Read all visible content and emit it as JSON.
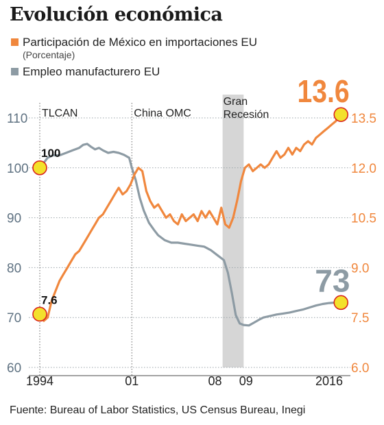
{
  "title": "Evolución económica",
  "legend": [
    {
      "label": "Participación de México en importaciones EU",
      "note": "(Porcentaje)",
      "color": "#f0873d"
    },
    {
      "label": "Empleo manufacturero EU",
      "note": "",
      "color": "#8d9ba4"
    }
  ],
  "source": "Fuente: Bureau of Labor Statistics, US Census Bureau, Inegi",
  "chart_data": {
    "type": "line",
    "x_ticks": [
      {
        "label": "1994",
        "x": 1994
      },
      {
        "label": "01",
        "x": 2001
      },
      {
        "label": "08",
        "x": 2008
      },
      {
        "label": "09",
        "x": 2009
      },
      {
        "label": "2016",
        "x": 2016
      }
    ],
    "xlim": [
      1994,
      2017.2
    ],
    "left_axis": {
      "ticks": [
        110,
        100,
        90,
        80,
        70,
        60
      ],
      "ylim": [
        60,
        110
      ]
    },
    "right_axis": {
      "ticks": [
        "13.5",
        "12.0",
        "10.5",
        "9.0",
        "7.5",
        "6.0"
      ],
      "ylim": [
        6.0,
        13.5
      ]
    },
    "events": [
      {
        "label": "TLCAN",
        "x": 1994
      },
      {
        "label": "China OMC",
        "x": 2001
      },
      {
        "label": "Gran\nRecesión",
        "x_start": 2007.9,
        "x_end": 2009.5,
        "shaded": true
      }
    ],
    "grid": true,
    "series": [
      {
        "name": "Empleo manufacturero EU",
        "axis": "left",
        "color": "#8d9ba4",
        "x": [
          1994.0,
          1994.3,
          1994.6,
          1995.0,
          1995.5,
          1996.0,
          1996.5,
          1997.0,
          1997.3,
          1997.6,
          1997.9,
          1998.2,
          1998.5,
          1998.8,
          1999.2,
          1999.6,
          2000.0,
          2000.4,
          2000.8,
          2001.0,
          2001.3,
          2001.6,
          2001.9,
          2002.3,
          2002.7,
          2003.0,
          2003.5,
          2004.0,
          2004.5,
          2005.0,
          2005.5,
          2006.0,
          2006.5,
          2007.0,
          2007.5,
          2008.0,
          2008.3,
          2008.6,
          2008.9,
          2009.2,
          2009.5,
          2009.9,
          2010.3,
          2010.7,
          2011.0,
          2011.5,
          2012.0,
          2012.5,
          2013.0,
          2013.5,
          2014.0,
          2014.5,
          2015.0,
          2015.5,
          2016.0,
          2016.5,
          2016.9
        ],
        "values": [
          100.0,
          101.0,
          102.0,
          102.5,
          102.5,
          103.0,
          103.5,
          104.0,
          104.6,
          104.8,
          104.2,
          103.7,
          104.0,
          103.5,
          103.0,
          103.2,
          103.0,
          102.6,
          102.0,
          100.0,
          97.5,
          94.0,
          91.5,
          89.0,
          87.5,
          86.5,
          85.5,
          85.0,
          85.0,
          84.8,
          84.6,
          84.4,
          84.2,
          83.5,
          82.5,
          81.5,
          79.0,
          75.0,
          70.5,
          68.8,
          68.5,
          68.4,
          69.0,
          69.6,
          70.0,
          70.3,
          70.6,
          70.8,
          71.0,
          71.3,
          71.6,
          72.0,
          72.4,
          72.7,
          72.9,
          73.0,
          73.0
        ]
      },
      {
        "name": "Participación de México en importaciones EU",
        "axis": "right",
        "color": "#f0873d",
        "x": [
          1994.0,
          1994.3,
          1994.6,
          1994.9,
          1995.2,
          1995.5,
          1995.8,
          1996.1,
          1996.4,
          1996.7,
          1997.0,
          1997.3,
          1997.6,
          1997.9,
          1998.2,
          1998.5,
          1998.8,
          1999.1,
          1999.4,
          1999.7,
          2000.0,
          2000.3,
          2000.6,
          2000.9,
          2001.2,
          2001.5,
          2001.8,
          2002.1,
          2002.4,
          2002.7,
          2003.0,
          2003.3,
          2003.6,
          2003.9,
          2004.2,
          2004.5,
          2004.8,
          2005.1,
          2005.4,
          2005.7,
          2006.0,
          2006.3,
          2006.6,
          2006.9,
          2007.2,
          2007.5,
          2007.8,
          2008.1,
          2008.4,
          2008.7,
          2009.0,
          2009.3,
          2009.6,
          2009.9,
          2010.2,
          2010.5,
          2010.8,
          2011.1,
          2011.4,
          2011.7,
          2012.0,
          2012.3,
          2012.6,
          2012.9,
          2013.2,
          2013.5,
          2013.8,
          2014.1,
          2014.4,
          2014.7,
          2015.0,
          2015.3,
          2015.6,
          2015.9,
          2016.2,
          2016.5,
          2016.8
        ],
        "values": [
          7.6,
          7.4,
          7.5,
          8.0,
          8.3,
          8.6,
          8.8,
          9.0,
          9.2,
          9.4,
          9.5,
          9.7,
          9.9,
          10.1,
          10.3,
          10.5,
          10.6,
          10.8,
          11.0,
          11.2,
          11.4,
          11.2,
          11.3,
          11.5,
          11.8,
          12.0,
          11.9,
          11.3,
          11.0,
          10.8,
          10.9,
          10.7,
          10.5,
          10.6,
          10.4,
          10.3,
          10.6,
          10.4,
          10.5,
          10.6,
          10.4,
          10.7,
          10.5,
          10.7,
          10.5,
          10.3,
          10.8,
          10.3,
          10.2,
          10.5,
          11.0,
          11.6,
          12.0,
          12.1,
          11.9,
          12.0,
          12.1,
          12.0,
          12.1,
          12.3,
          12.5,
          12.3,
          12.4,
          12.6,
          12.4,
          12.6,
          12.5,
          12.7,
          12.8,
          12.7,
          12.9,
          13.0,
          13.1,
          13.2,
          13.3,
          13.4,
          13.6
        ]
      }
    ],
    "annotations": [
      {
        "text": "100",
        "x": 1994,
        "series": "Empleo manufacturero EU",
        "value": 100
      },
      {
        "text": "7.6",
        "x": 1994,
        "series": "Participación de México en importaciones EU",
        "value": 7.6
      },
      {
        "text": "13.6",
        "x": 2016.9,
        "series": "Participación de México en importaciones EU",
        "value": 13.6
      },
      {
        "text": "73",
        "x": 2016.9,
        "series": "Empleo manufacturero EU",
        "value": 73
      }
    ]
  }
}
